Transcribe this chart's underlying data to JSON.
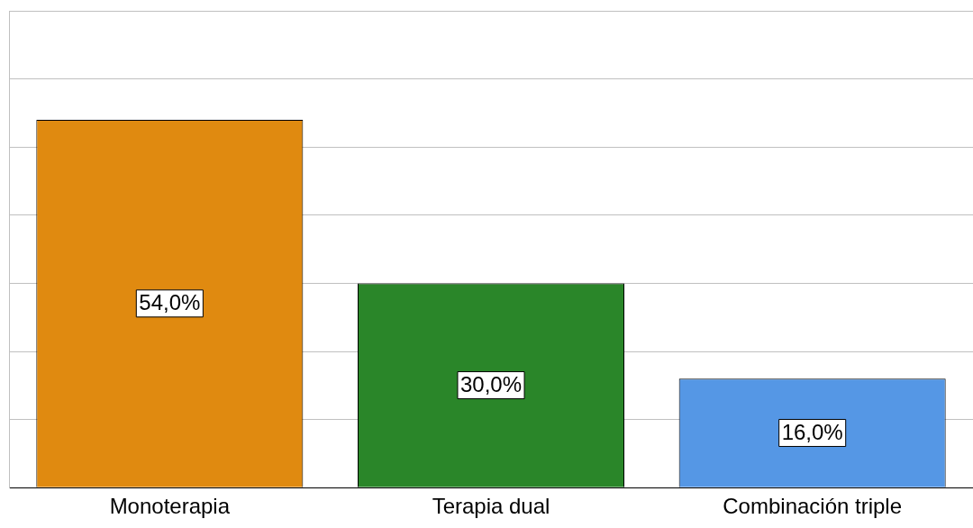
{
  "chart_data": {
    "type": "bar",
    "categories": [
      "Monoterapia",
      "Terapia dual",
      "Combinación triple"
    ],
    "values": [
      54,
      30,
      16
    ],
    "colors": [
      "#e08a10",
      "#2a8629",
      "#5597e5"
    ],
    "value_labels": [
      "54,0%",
      "30,0%",
      "16,0%"
    ],
    "ylim": [
      0,
      70
    ],
    "yticks": [
      {
        "value": 0,
        "label": null
      },
      {
        "value": 10,
        "label": null
      },
      {
        "value": 20,
        "label": null
      },
      {
        "value": 30,
        "label": null
      },
      {
        "value": 40,
        "label": null
      },
      {
        "value": 50,
        "label": null
      },
      {
        "value": 60,
        "label": null
      },
      {
        "value": 70,
        "label": null
      }
    ],
    "grid": "y",
    "tick_labels": "x"
  }
}
